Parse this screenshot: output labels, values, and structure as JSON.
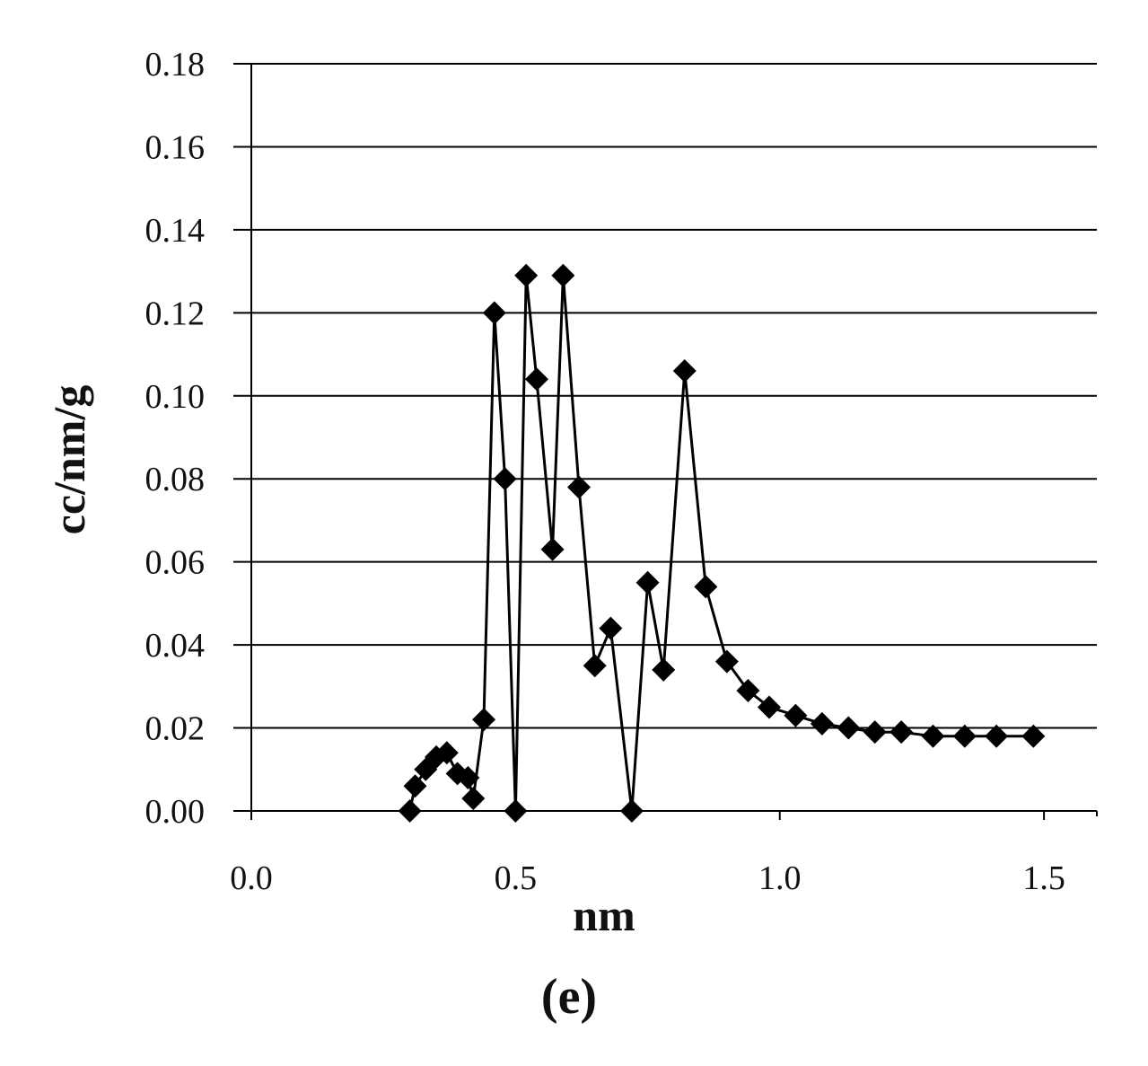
{
  "chart_data": {
    "type": "line",
    "title": "",
    "xlabel": "nm",
    "ylabel": "cc/nm/g",
    "panel_label": "(e)",
    "xlim": [
      0.0,
      1.6
    ],
    "ylim": [
      0.0,
      0.18
    ],
    "x_ticks": [
      "0.0",
      "0.5",
      "1.0",
      "1.5"
    ],
    "y_ticks": [
      "0.00",
      "0.02",
      "0.04",
      "0.06",
      "0.08",
      "0.10",
      "0.12",
      "0.14",
      "0.16",
      "0.18"
    ],
    "grid": "horizontal",
    "marker": "diamond",
    "series": [
      {
        "x": [
          0.3,
          0.31,
          0.33,
          0.35,
          0.37,
          0.39,
          0.41,
          0.42,
          0.44,
          0.46,
          0.48,
          0.5,
          0.52,
          0.54,
          0.57,
          0.59,
          0.62,
          0.65,
          0.68,
          0.72,
          0.75,
          0.78,
          0.82,
          0.86,
          0.9,
          0.94,
          0.98,
          1.03,
          1.08,
          1.13,
          1.18,
          1.23,
          1.29,
          1.35,
          1.41,
          1.48
        ],
        "y": [
          0.0,
          0.006,
          0.01,
          0.013,
          0.014,
          0.009,
          0.008,
          0.003,
          0.022,
          0.12,
          0.08,
          0.0,
          0.129,
          0.104,
          0.063,
          0.129,
          0.078,
          0.035,
          0.044,
          0.0,
          0.055,
          0.034,
          0.106,
          0.054,
          0.036,
          0.029,
          0.025,
          0.023,
          0.021,
          0.02,
          0.019,
          0.019,
          0.018,
          0.018,
          0.018,
          0.018
        ],
        "color": "#000000"
      }
    ]
  }
}
